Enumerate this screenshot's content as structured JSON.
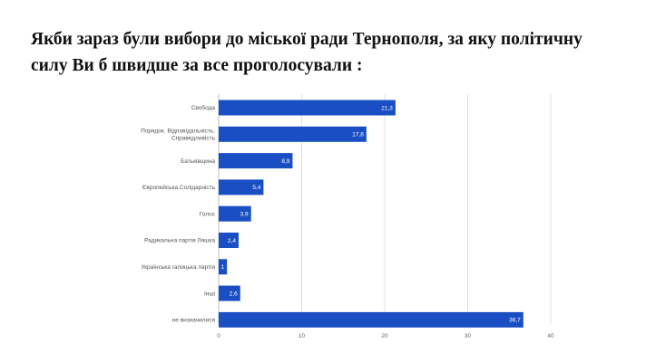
{
  "page": {
    "title": "Якби зараз були вибори до міської ради Тернополя, за яку політичну силу Ви б швидше за все проголосували :"
  },
  "chart_data": {
    "type": "bar",
    "orientation": "horizontal",
    "title": "",
    "xlabel": "",
    "ylabel": "",
    "xlim": [
      0,
      40
    ],
    "ticks": [
      0,
      10,
      20,
      30,
      40
    ],
    "grid": true,
    "bar_color": "#1a4fc4",
    "categories": [
      [
        "Свобода"
      ],
      [
        "Порядок. Відповідальність.",
        "Справедливість"
      ],
      [
        "Батьківщина"
      ],
      [
        "Європейська Солідарність"
      ],
      [
        "Голос"
      ],
      [
        "Радикальна партія Ляшка"
      ],
      [
        "Українська галицька партія"
      ],
      [
        "Інші"
      ],
      [
        "не визначилися"
      ]
    ],
    "values": [
      21.3,
      17.8,
      8.9,
      5.4,
      3.9,
      2.4,
      1,
      2.6,
      36.7
    ],
    "value_labels": [
      "21,3",
      "17,8",
      "8,9",
      "5,4",
      "3,9",
      "2,4",
      "1",
      "2,6",
      "36,7"
    ]
  }
}
